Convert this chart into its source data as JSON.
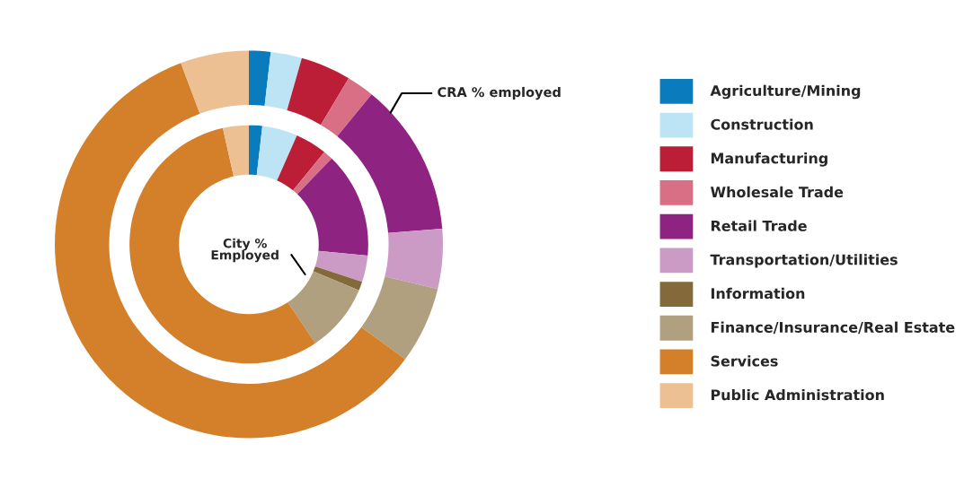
{
  "chart_data": {
    "type": "donut",
    "categories": [
      "Agriculture/Mining",
      "Construction",
      "Manufacturing",
      "Wholesale Trade",
      "Retail Trade",
      "Transportation/Utilities",
      "Information",
      "Finance/Insurance/Real Estate",
      "Services",
      "Public Administration"
    ],
    "colors": [
      "#0a7bbd",
      "#bde4f5",
      "#bd1e37",
      "#d86f85",
      "#8e2382",
      "#cb9bc6",
      "#846a3a",
      "#b0a07f",
      "#d47f2a",
      "#ecc093"
    ],
    "series": [
      {
        "name": "CRA % employed",
        "values": [
          1.8,
          2.6,
          4.2,
          2.3,
          12.8,
          5.0,
          0,
          6.4,
          59.2,
          5.7
        ]
      },
      {
        "name": "City % Employed",
        "values": [
          1.8,
          4.8,
          4.3,
          1.3,
          14.3,
          3.6,
          1.2,
          9.3,
          55.9,
          3.5
        ]
      }
    ],
    "legend": "right"
  }
}
